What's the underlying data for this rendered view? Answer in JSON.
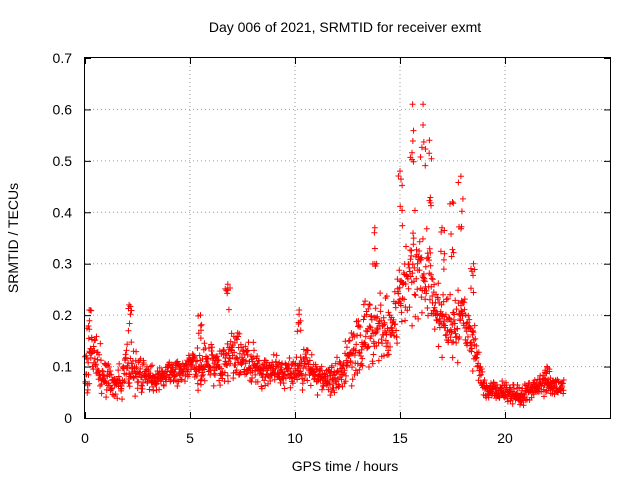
{
  "chart_data": {
    "type": "scatter",
    "title": "Day 006 of 2021, SRMTID for receiver exmt",
    "xlabel": "GPS time / hours",
    "ylabel": "SRMTID / TECUs",
    "xlim": [
      0,
      25
    ],
    "ylim": [
      0,
      0.7
    ],
    "xticks": [
      0,
      5,
      10,
      15,
      20
    ],
    "xtick_labels": [
      "0",
      "5",
      "10",
      "15",
      "20"
    ],
    "yticks": [
      0,
      0.1,
      0.2,
      0.3,
      0.4,
      0.5,
      0.6,
      0.7
    ],
    "ytick_labels": [
      "0",
      "0.1",
      "0.2",
      "0.3",
      "0.4",
      "0.5",
      "0.6",
      "0.7"
    ],
    "grid": true,
    "marker": "+",
    "color": "#ff0000",
    "series": [
      {
        "name": "SRMTID",
        "envelope": {
          "description": "approximate running baseline and spread of the dense point cloud",
          "x": [
            0.0,
            0.3,
            0.6,
            1.0,
            1.5,
            2.0,
            2.5,
            3.0,
            3.5,
            4.0,
            4.5,
            5.0,
            5.5,
            6.0,
            6.5,
            7.0,
            7.5,
            8.0,
            8.5,
            9.0,
            9.5,
            10.0,
            10.5,
            11.0,
            11.5,
            12.0,
            12.5,
            13.0,
            13.5,
            14.0,
            14.5,
            15.0,
            15.5,
            16.0,
            16.5,
            17.0,
            17.5,
            18.0,
            18.5,
            19.0,
            19.5,
            20.0,
            20.5,
            21.0,
            21.5,
            22.0,
            22.5,
            22.8
          ],
          "center": [
            0.09,
            0.12,
            0.11,
            0.08,
            0.06,
            0.1,
            0.09,
            0.08,
            0.08,
            0.09,
            0.09,
            0.1,
            0.1,
            0.11,
            0.1,
            0.13,
            0.11,
            0.1,
            0.09,
            0.09,
            0.09,
            0.09,
            0.1,
            0.08,
            0.07,
            0.08,
            0.11,
            0.14,
            0.16,
            0.18,
            0.16,
            0.22,
            0.28,
            0.3,
            0.24,
            0.19,
            0.18,
            0.2,
            0.14,
            0.06,
            0.05,
            0.05,
            0.04,
            0.05,
            0.06,
            0.07,
            0.06,
            0.06
          ],
          "spread": [
            0.04,
            0.06,
            0.05,
            0.04,
            0.03,
            0.05,
            0.04,
            0.03,
            0.03,
            0.03,
            0.03,
            0.03,
            0.04,
            0.04,
            0.04,
            0.05,
            0.04,
            0.04,
            0.03,
            0.03,
            0.03,
            0.03,
            0.04,
            0.03,
            0.03,
            0.04,
            0.05,
            0.06,
            0.07,
            0.07,
            0.06,
            0.08,
            0.1,
            0.1,
            0.08,
            0.06,
            0.06,
            0.07,
            0.05,
            0.02,
            0.02,
            0.02,
            0.02,
            0.02,
            0.02,
            0.02,
            0.02,
            0.02
          ]
        },
        "peaks": [
          {
            "x": 0.2,
            "y": 0.21
          },
          {
            "x": 2.1,
            "y": 0.22
          },
          {
            "x": 5.5,
            "y": 0.2
          },
          {
            "x": 6.8,
            "y": 0.26
          },
          {
            "x": 10.2,
            "y": 0.21
          },
          {
            "x": 13.8,
            "y": 0.37
          },
          {
            "x": 15.0,
            "y": 0.48
          },
          {
            "x": 15.6,
            "y": 0.61
          },
          {
            "x": 16.1,
            "y": 0.61
          },
          {
            "x": 16.4,
            "y": 0.54
          },
          {
            "x": 17.0,
            "y": 0.37
          },
          {
            "x": 17.5,
            "y": 0.42
          },
          {
            "x": 17.9,
            "y": 0.47
          },
          {
            "x": 18.5,
            "y": 0.3
          },
          {
            "x": 22.0,
            "y": 0.1
          }
        ]
      }
    ]
  }
}
